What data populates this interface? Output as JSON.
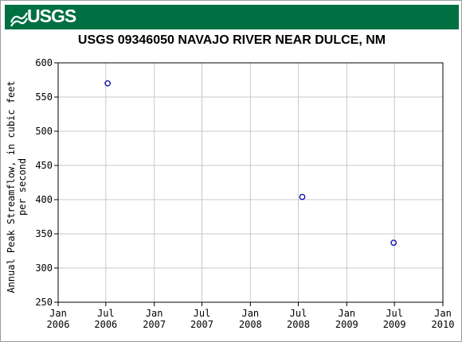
{
  "header": {
    "logo_text": "USGS",
    "brand_color": "#006f41"
  },
  "chart_data": {
    "type": "scatter",
    "title": "USGS 09346050 NAVAJO RIVER NEAR DULCE, NM",
    "ylabel_lines": [
      "Annual Peak Streamflow, in cubic feet",
      "per second"
    ],
    "xlabel": "",
    "x_ticks": [
      {
        "date": "2006-01-01",
        "label": [
          "Jan",
          "2006"
        ]
      },
      {
        "date": "2006-07-01",
        "label": [
          "Jul",
          "2006"
        ]
      },
      {
        "date": "2007-01-01",
        "label": [
          "Jan",
          "2007"
        ]
      },
      {
        "date": "2007-07-01",
        "label": [
          "Jul",
          "2007"
        ]
      },
      {
        "date": "2008-01-01",
        "label": [
          "Jan",
          "2008"
        ]
      },
      {
        "date": "2008-07-01",
        "label": [
          "Jul",
          "2008"
        ]
      },
      {
        "date": "2009-01-01",
        "label": [
          "Jan",
          "2009"
        ]
      },
      {
        "date": "2009-07-01",
        "label": [
          "Jul",
          "2009"
        ]
      },
      {
        "date": "2010-01-01",
        "label": [
          "Jan",
          "2010"
        ]
      }
    ],
    "y_ticks": [
      250,
      300,
      350,
      400,
      450,
      500,
      550,
      600
    ],
    "xlim": [
      "2006-01-01",
      "2010-01-01"
    ],
    "ylim": [
      250,
      600
    ],
    "grid": true,
    "marker": "open-circle",
    "marker_color": "#0000aa",
    "points": [
      {
        "x": "2006-07-08",
        "y": 570
      },
      {
        "x": "2008-07-16",
        "y": 404
      },
      {
        "x": "2009-06-28",
        "y": 337
      }
    ]
  }
}
